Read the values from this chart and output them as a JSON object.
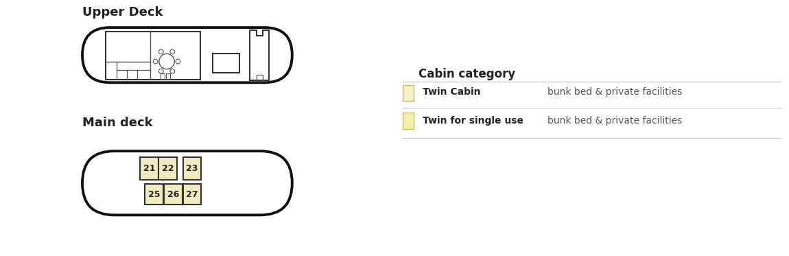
{
  "title_upper": "Upper Deck",
  "title_main": "Main deck",
  "cabin_category_title": "Cabin category",
  "legend_items": [
    {
      "label": "Twin Cabin",
      "desc": "bunk bed & private facilities",
      "color": "#f5f0c8"
    },
    {
      "label": "Twin for single use",
      "desc": "bunk bed & private facilities",
      "color": "#f5f0a8"
    }
  ],
  "bg_color": "#ffffff",
  "hull_color": "#111111",
  "cabin_fill": "#f0eac0",
  "cabin_edge": "#333333",
  "text_color": "#222222",
  "line_color": "#cccccc",
  "inner_color": "#555555"
}
